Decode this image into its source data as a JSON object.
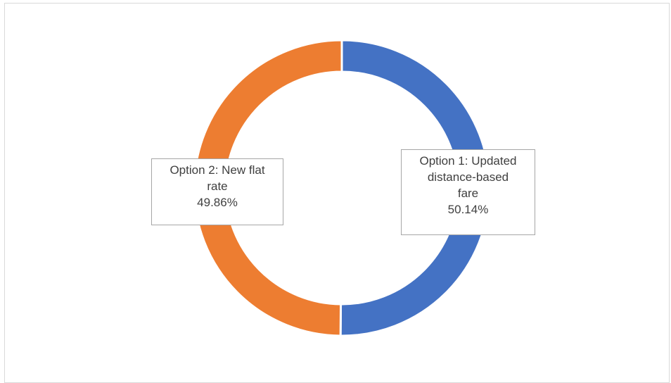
{
  "chart_data": {
    "type": "pie",
    "variant": "doughnut",
    "title": "",
    "slices": [
      {
        "label_lines": [
          "Option 1: Updated",
          "distance-based",
          "fare"
        ],
        "value_text": "50.14%",
        "value": 50.14,
        "color": "#4472C4"
      },
      {
        "label_lines": [
          "Option 2: New flat",
          "rate"
        ],
        "value_text": "49.86%",
        "value": 49.86,
        "color": "#ED7D31"
      }
    ],
    "legend": "none",
    "data_label_border_color": "#A6A6A6",
    "slice_separator_color": "#FFFFFF"
  }
}
